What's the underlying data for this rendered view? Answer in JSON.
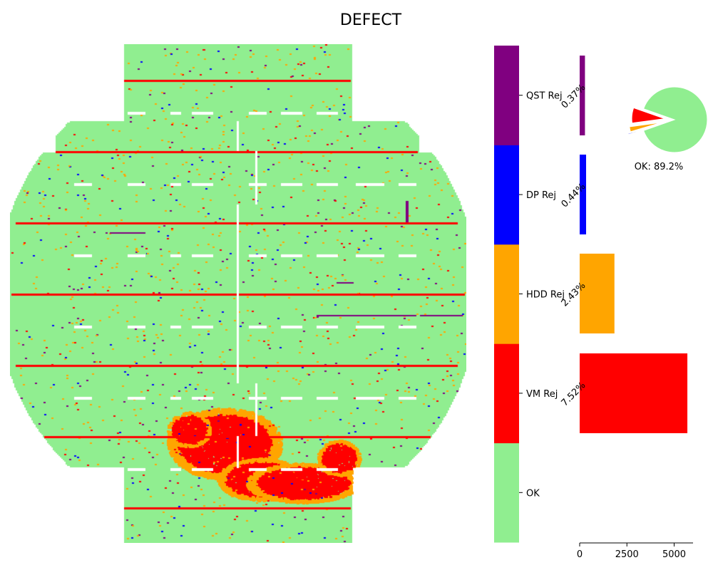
{
  "chart_data": [
    {
      "type": "heatmap",
      "title": "DEFECT",
      "legend": [
        {
          "label": "OK",
          "color": "#90EE90"
        },
        {
          "label": "VM Rej",
          "color": "#FF0000"
        },
        {
          "label": "HDD Rej",
          "color": "#FFA500"
        },
        {
          "label": "DP Rej",
          "color": "#0000FF"
        },
        {
          "label": "QST Rej",
          "color": "#800080"
        }
      ]
    },
    {
      "type": "bar",
      "orientation": "horizontal",
      "categories": [
        "VM Rej",
        "HDD Rej",
        "DP Rej",
        "QST Rej"
      ],
      "values": [
        5700,
        1840,
        340,
        280
      ],
      "percent_labels": [
        "7.52%",
        "2.43%",
        "0.44%",
        "0.37%"
      ],
      "colors": [
        "#FF0000",
        "#FFA500",
        "#0000FF",
        "#800080"
      ],
      "xticks": [
        0,
        2500,
        5000
      ],
      "xlim": [
        0,
        6000
      ]
    },
    {
      "type": "pie",
      "slices": [
        {
          "name": "OK",
          "value": 89.2,
          "color": "#90EE90"
        },
        {
          "name": "VM Rej",
          "value": 7.52,
          "color": "#FF0000"
        },
        {
          "name": "HDD Rej",
          "value": 2.43,
          "color": "#FFA500"
        },
        {
          "name": "DP Rej",
          "value": 0.44,
          "color": "#0000FF"
        },
        {
          "name": "QST Rej",
          "value": 0.37,
          "color": "#800080"
        }
      ],
      "label": "OK:  89.2%"
    }
  ]
}
